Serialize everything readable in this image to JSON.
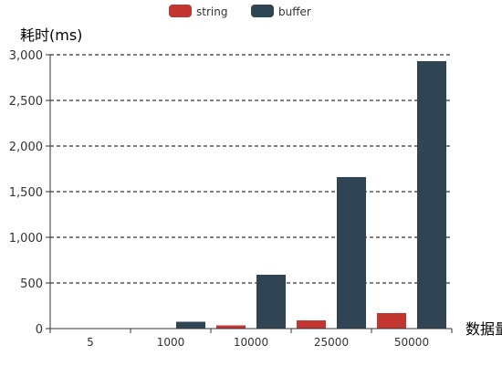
{
  "chart_data": {
    "type": "bar",
    "title": "",
    "ylabel": "耗时(ms)",
    "xlabel": "数据量",
    "categories": [
      "5",
      "1000",
      "10000",
      "25000",
      "50000"
    ],
    "ylim": [
      0,
      3000
    ],
    "yticks": [
      0,
      500,
      1000,
      1500,
      2000,
      2500,
      3000
    ],
    "ytick_labels": [
      "0",
      "500",
      "1,000",
      "1,500",
      "2,000",
      "2,500",
      "3,000"
    ],
    "grid": "horizontal dashed",
    "legend_position": "top-center",
    "series": [
      {
        "name": "string",
        "color": "#c23531",
        "values": [
          1,
          5,
          35,
          90,
          170
        ]
      },
      {
        "name": "buffer",
        "color": "#2f4554",
        "values": [
          2,
          75,
          590,
          1660,
          2930
        ]
      }
    ]
  }
}
